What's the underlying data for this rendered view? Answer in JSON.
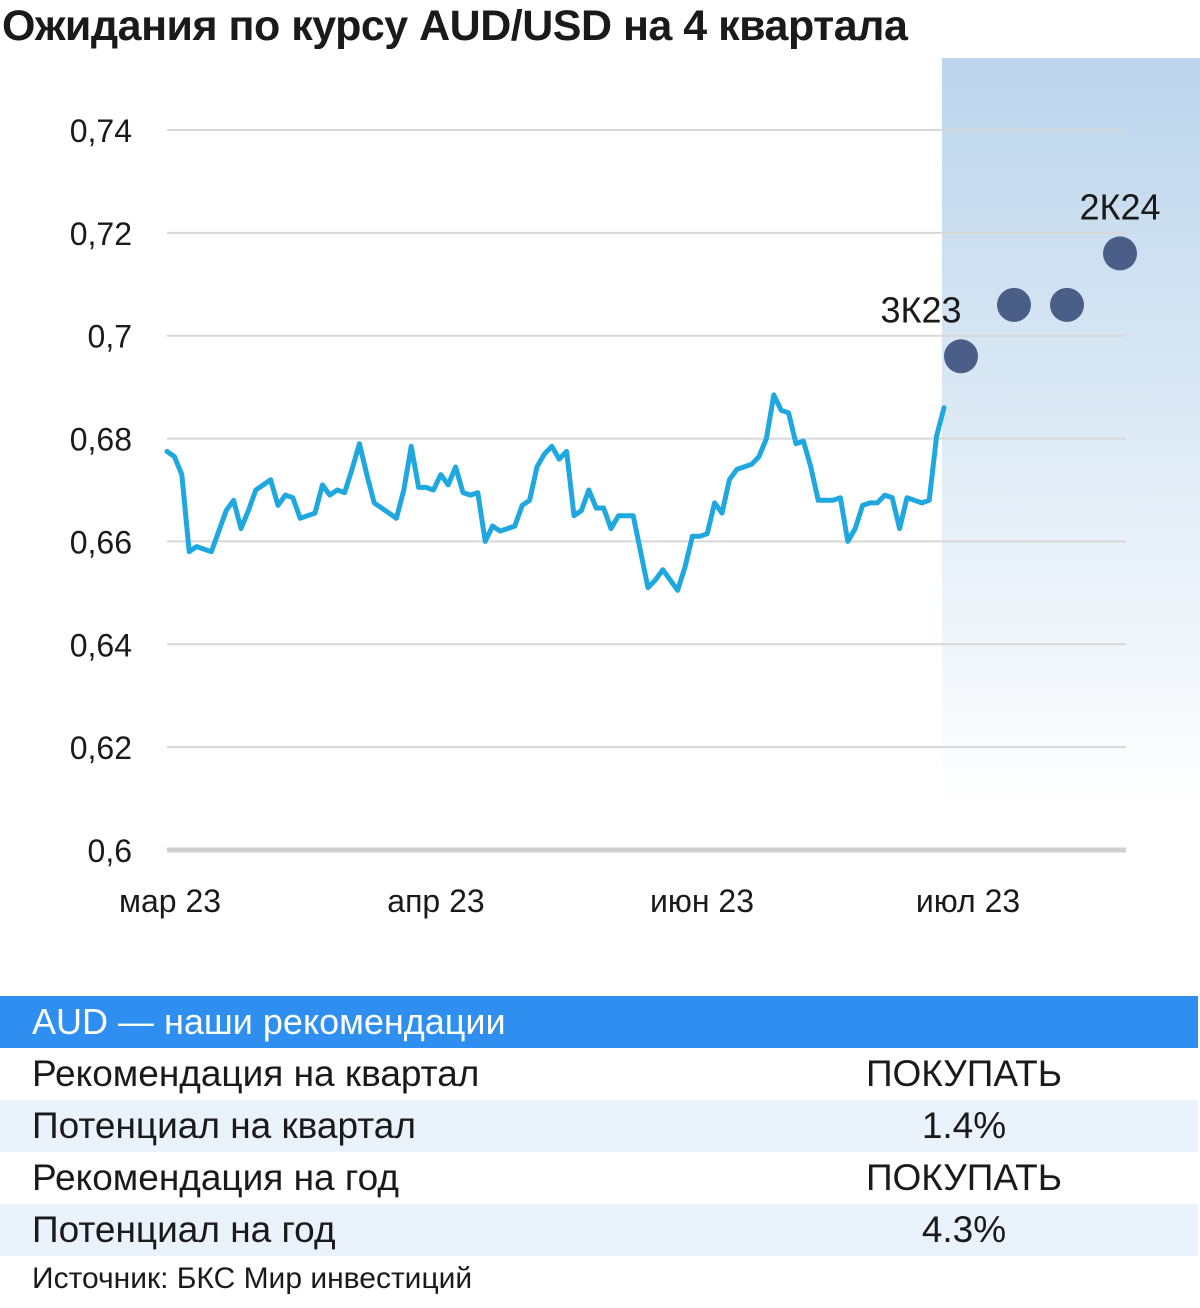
{
  "title": "Ожидания по курсу AUD/USD на 4 квартала",
  "colors": {
    "line": "#1fa8e0",
    "forecast_point": "#4a5e88",
    "forecast_shade": "#bcd5ec",
    "grid": "#d7d7d7",
    "table_header": "#2e8ff0",
    "table_alt_row": "#eaf2fb"
  },
  "chart_data": {
    "type": "line",
    "ylim": [
      0.6,
      0.74
    ],
    "y_ticks": [
      "0,74",
      "0,72",
      "0,7",
      "0,68",
      "0,66",
      "0,64",
      "0,62",
      "0,6"
    ],
    "y_tick_values": [
      0.74,
      0.72,
      0.7,
      0.68,
      0.66,
      0.64,
      0.62,
      0.6
    ],
    "x_ticks": [
      "мар 23",
      "апр 23",
      "июн 23",
      "июл 23"
    ],
    "grid": true,
    "series": [
      {
        "values": [
          0.6775,
          0.6765,
          0.673,
          0.658,
          0.659,
          0.6585,
          0.658,
          0.662,
          0.666,
          0.668,
          0.6625,
          0.666,
          0.67,
          0.671,
          0.672,
          0.667,
          0.669,
          0.6685,
          0.6645,
          0.665,
          0.6655,
          0.671,
          0.669,
          0.67,
          0.6695,
          0.674,
          0.679,
          0.673,
          0.6675,
          0.6665,
          0.6655,
          0.6645,
          0.67,
          0.6785,
          0.6705,
          0.6705,
          0.67,
          0.673,
          0.671,
          0.6745,
          0.6695,
          0.669,
          0.6695,
          0.66,
          0.663,
          0.662,
          0.6625,
          0.663,
          0.667,
          0.668,
          0.6745,
          0.677,
          0.6785,
          0.676,
          0.6775,
          0.665,
          0.666,
          0.67,
          0.6665,
          0.6665,
          0.6625,
          0.665,
          0.665,
          0.665,
          0.658,
          0.651,
          0.6525,
          0.6545,
          0.6525,
          0.6505,
          0.655,
          0.661,
          0.661,
          0.6615,
          0.6675,
          0.6655,
          0.672,
          0.674,
          0.6745,
          0.675,
          0.6765,
          0.68,
          0.6885,
          0.6855,
          0.685,
          0.679,
          0.6795,
          0.6745,
          0.668,
          0.668,
          0.668,
          0.6685,
          0.66,
          0.6625,
          0.667,
          0.6675,
          0.6675,
          0.669,
          0.6685,
          0.6625,
          0.6685,
          0.668,
          0.6675,
          0.668,
          0.6805,
          0.686
        ]
      },
      {
        "type": "scatter",
        "labels": [
          "3К23",
          "",
          "",
          "2К24"
        ],
        "values": [
          0.696,
          0.706,
          0.706,
          0.716
        ]
      }
    ]
  },
  "table": {
    "header": "AUD — наши рекомендации",
    "rows": [
      {
        "label": "Рекомендация на квартал",
        "value": "ПОКУПАТЬ"
      },
      {
        "label": "Потенциал на квартал",
        "value": "1.4%"
      },
      {
        "label": "Рекомендация на год",
        "value": "ПОКУПАТЬ"
      },
      {
        "label": "Потенциал на год",
        "value": "4.3%"
      }
    ]
  },
  "source": "Источник: БКС Мир инвестиций"
}
